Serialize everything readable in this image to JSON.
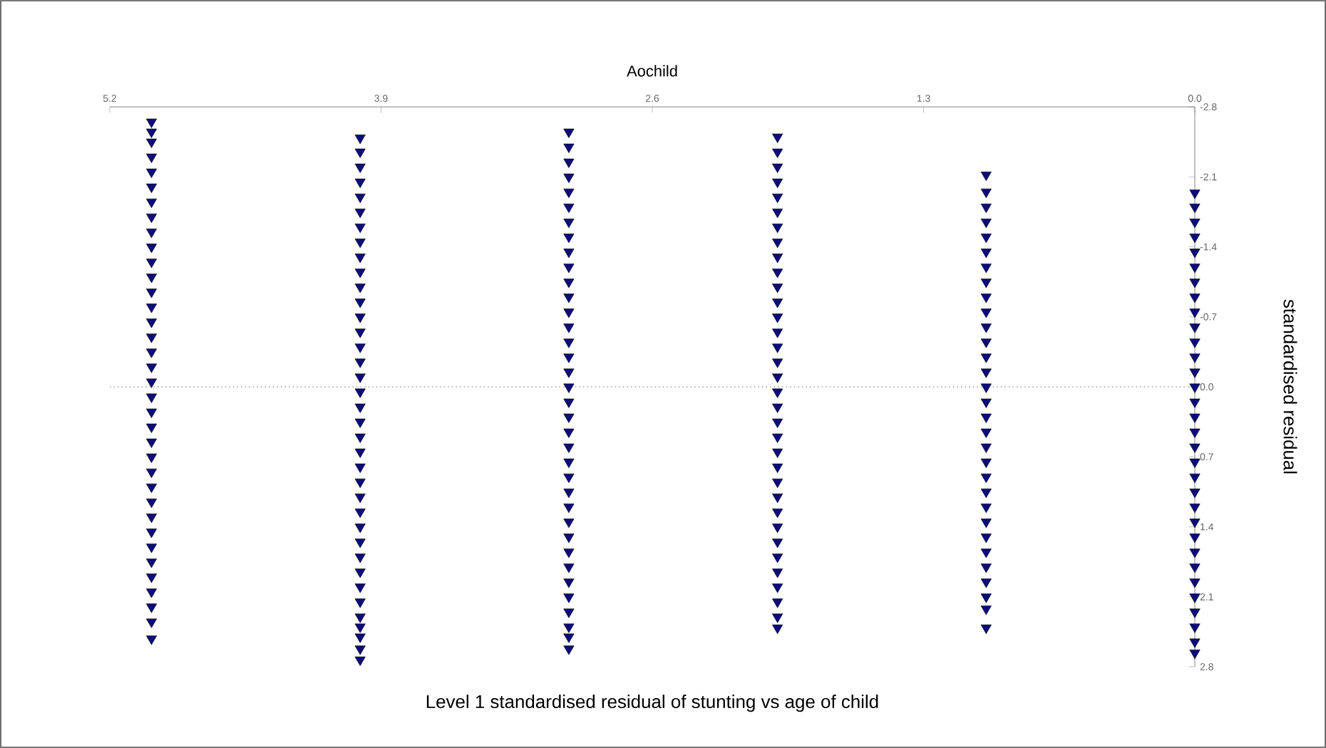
{
  "chart_data": {
    "type": "scatter",
    "title": "Level 1 standardised residual  of stunting vs age of child",
    "xlabel": "Aochild",
    "ylabel": "standardised residual",
    "series": [
      {
        "color": "#0c0c7a",
        "x": [
          0,
          0,
          0,
          0,
          0,
          0,
          0,
          0,
          0,
          0,
          0,
          0,
          0,
          0,
          0,
          0,
          0,
          0,
          0,
          0,
          0,
          0,
          0,
          0,
          0,
          0,
          0,
          0,
          0,
          0,
          0,
          0
        ],
        "values": [
          -1.94,
          -1.8,
          -1.65,
          -1.5,
          -1.35,
          -1.2,
          -1.05,
          -0.9,
          -0.75,
          -0.6,
          -0.45,
          -0.3,
          -0.15,
          0.0,
          0.15,
          0.3,
          0.45,
          0.6,
          0.75,
          0.9,
          1.05,
          1.2,
          1.35,
          1.5,
          1.65,
          1.8,
          1.95,
          2.1,
          2.25,
          2.4,
          2.55,
          2.66
        ]
      },
      {
        "color": "#0c0c7a",
        "x": [
          1,
          1,
          1,
          1,
          1,
          1,
          1,
          1,
          1,
          1,
          1,
          1,
          1,
          1,
          1,
          1,
          1,
          1,
          1,
          1,
          1,
          1,
          1,
          1,
          1,
          1,
          1,
          1,
          1,
          1,
          1
        ],
        "values": [
          -2.12,
          -1.95,
          -1.8,
          -1.65,
          -1.5,
          -1.35,
          -1.2,
          -1.05,
          -0.9,
          -0.75,
          -0.6,
          -0.45,
          -0.3,
          -0.15,
          0.0,
          0.15,
          0.3,
          0.45,
          0.6,
          0.75,
          0.9,
          1.05,
          1.2,
          1.35,
          1.5,
          1.65,
          1.8,
          1.95,
          2.1,
          2.22,
          2.41
        ]
      },
      {
        "color": "#0c0c7a",
        "x": [
          2,
          2,
          2,
          2,
          2,
          2,
          2,
          2,
          2,
          2,
          2,
          2,
          2,
          2,
          2,
          2,
          2,
          2,
          2,
          2,
          2,
          2,
          2,
          2,
          2,
          2,
          2,
          2,
          2,
          2,
          2,
          2,
          2,
          2
        ],
        "values": [
          -2.5,
          -2.35,
          -2.2,
          -2.05,
          -1.9,
          -1.75,
          -1.6,
          -1.45,
          -1.3,
          -1.15,
          -1.0,
          -0.85,
          -0.7,
          -0.55,
          -0.4,
          -0.25,
          -0.1,
          0.05,
          0.2,
          0.35,
          0.5,
          0.65,
          0.8,
          0.95,
          1.1,
          1.25,
          1.4,
          1.55,
          1.7,
          1.85,
          2.0,
          2.15,
          2.3,
          2.41
        ]
      },
      {
        "color": "#0c0c7a",
        "x": [
          3,
          3,
          3,
          3,
          3,
          3,
          3,
          3,
          3,
          3,
          3,
          3,
          3,
          3,
          3,
          3,
          3,
          3,
          3,
          3,
          3,
          3,
          3,
          3,
          3,
          3,
          3,
          3,
          3,
          3,
          3,
          3,
          3,
          3,
          3,
          3
        ],
        "values": [
          -2.55,
          -2.4,
          -2.25,
          -2.1,
          -1.95,
          -1.8,
          -1.65,
          -1.5,
          -1.35,
          -1.2,
          -1.05,
          -0.9,
          -0.75,
          -0.6,
          -0.45,
          -0.3,
          -0.15,
          0.0,
          0.15,
          0.3,
          0.45,
          0.6,
          0.75,
          0.9,
          1.05,
          1.2,
          1.35,
          1.5,
          1.65,
          1.8,
          1.95,
          2.1,
          2.25,
          2.4,
          2.5,
          2.62
        ]
      },
      {
        "color": "#0c0c7a",
        "x": [
          4,
          4,
          4,
          4,
          4,
          4,
          4,
          4,
          4,
          4,
          4,
          4,
          4,
          4,
          4,
          4,
          4,
          4,
          4,
          4,
          4,
          4,
          4,
          4,
          4,
          4,
          4,
          4,
          4,
          4,
          4,
          4,
          4,
          4,
          4,
          4,
          4
        ],
        "values": [
          -2.49,
          -2.35,
          -2.2,
          -2.05,
          -1.9,
          -1.75,
          -1.6,
          -1.45,
          -1.3,
          -1.15,
          -1.0,
          -0.85,
          -0.7,
          -0.55,
          -0.4,
          -0.25,
          -0.1,
          0.05,
          0.2,
          0.35,
          0.5,
          0.65,
          0.8,
          0.95,
          1.1,
          1.25,
          1.4,
          1.55,
          1.7,
          1.85,
          2.0,
          2.15,
          2.3,
          2.4,
          2.5,
          2.62,
          2.73
        ]
      },
      {
        "color": "#0c0c7a",
        "x": [
          5,
          5,
          5,
          5,
          5,
          5,
          5,
          5,
          5,
          5,
          5,
          5,
          5,
          5,
          5,
          5,
          5,
          5,
          5,
          5,
          5,
          5,
          5,
          5,
          5,
          5,
          5,
          5,
          5,
          5,
          5,
          5,
          5,
          5,
          5,
          5
        ],
        "values": [
          -2.65,
          -2.55,
          -2.45,
          -2.3,
          -2.15,
          -2.0,
          -1.85,
          -1.7,
          -1.55,
          -1.4,
          -1.25,
          -1.1,
          -0.95,
          -0.8,
          -0.65,
          -0.5,
          -0.35,
          -0.2,
          -0.05,
          0.1,
          0.25,
          0.4,
          0.55,
          0.7,
          0.85,
          1.0,
          1.15,
          1.3,
          1.45,
          1.6,
          1.75,
          1.9,
          2.05,
          2.2,
          2.35,
          2.52
        ]
      }
    ],
    "xlim": [
      5.2,
      0
    ],
    "xticks": [
      {
        "value": 0,
        "label": "0.0"
      },
      1.3,
      2.6,
      3.9,
      5.2
    ],
    "ylim": [
      2.8,
      -2.8
    ],
    "yticks": [
      -2.8,
      -2.1,
      -1.4,
      -0.7,
      {
        "value": 0,
        "label": "0.0"
      },
      0.7,
      1.4,
      2.1,
      2.8
    ],
    "ref_lines": [
      {
        "axis": "y",
        "value": 0,
        "color": "#a0a0a0",
        "line_style": "dotted"
      }
    ],
    "marker": "triangle"
  }
}
